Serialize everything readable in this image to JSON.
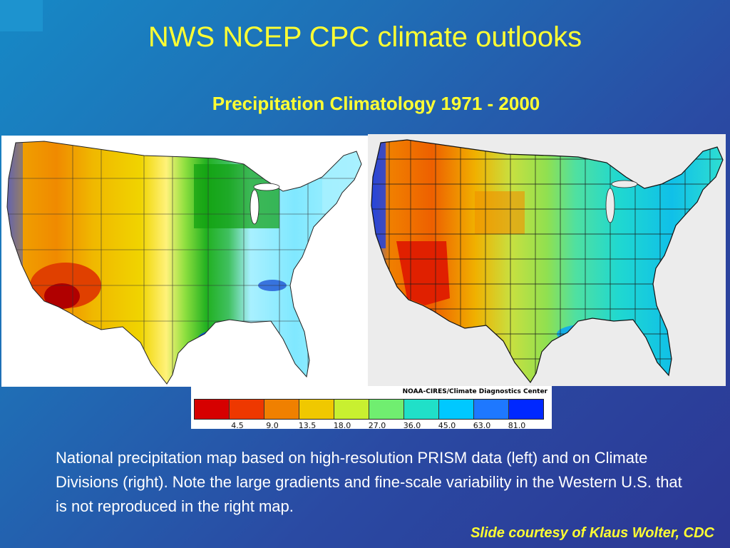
{
  "slide": {
    "title": "NWS NCEP CPC climate outlooks",
    "subtitle": "Precipitation Climatology 1971 - 2000",
    "caption": "National precipitation map based on high-resolution PRISM data (left) and on Climate Divisions (right). Note the large gradients and fine-scale variability in the Western U.S. that is not reproduced in the right map.",
    "credit": "Slide courtesy of Klaus Wolter, CDC"
  },
  "legend": {
    "source": "NOAA-CIRES/Climate Diagnostics Center",
    "colors": [
      "#d60000",
      "#ee3800",
      "#f08000",
      "#f0c800",
      "#c8f030",
      "#70ee70",
      "#20e0c8",
      "#00c8ff",
      "#1e78ff",
      "#0028ff"
    ],
    "tick_labels": [
      "4.5",
      "9.0",
      "13.5",
      "18.0",
      "27.0",
      "36.0",
      "45.0",
      "63.0",
      "81.0"
    ]
  },
  "maps": {
    "left": {
      "name": "prism-precipitation-map"
    },
    "right": {
      "name": "climate-division-precipitation-map"
    }
  }
}
